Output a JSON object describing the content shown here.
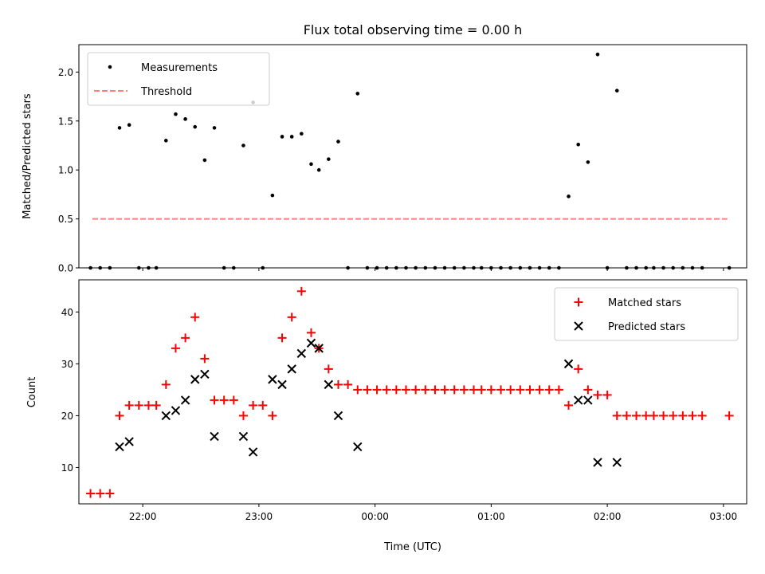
{
  "chart_data": [
    {
      "type": "scatter",
      "title": "Flux total observing time = 0.00 h",
      "xlabel": "",
      "ylabel": "Matched/Predicted stars",
      "ylim": [
        0,
        2.28
      ],
      "yticks": [
        "0.0",
        "0.5",
        "1.0",
        "1.5",
        "2.0"
      ],
      "legend": {
        "position": "top-left",
        "entries": [
          "Measurements",
          "Threshold"
        ]
      },
      "series": [
        {
          "name": "Measurements",
          "marker": "dot",
          "color": "#000000",
          "points": [
            [
              "21:33",
              0.0
            ],
            [
              "21:38",
              0.0
            ],
            [
              "21:43",
              0.0
            ],
            [
              "21:48",
              1.43
            ],
            [
              "21:53",
              1.46
            ],
            [
              "21:58",
              0.0
            ],
            [
              "22:03",
              0.0
            ],
            [
              "22:07",
              0.0
            ],
            [
              "22:12",
              1.3
            ],
            [
              "22:17",
              1.57
            ],
            [
              "22:22",
              1.52
            ],
            [
              "22:27",
              1.44
            ],
            [
              "22:32",
              1.1
            ],
            [
              "22:37",
              1.43
            ],
            [
              "22:42",
              0.0
            ],
            [
              "22:47",
              0.0
            ],
            [
              "22:52",
              1.25
            ],
            [
              "22:57",
              1.69
            ],
            [
              "23:02",
              0.0
            ],
            [
              "23:07",
              0.74
            ],
            [
              "23:12",
              1.34
            ],
            [
              "23:17",
              1.34
            ],
            [
              "23:22",
              1.37
            ],
            [
              "23:27",
              1.06
            ],
            [
              "23:31",
              1.0
            ],
            [
              "23:36",
              1.11
            ],
            [
              "23:41",
              1.29
            ],
            [
              "23:46",
              0.0
            ],
            [
              "23:51",
              1.78
            ],
            [
              "23:56",
              0.0
            ],
            [
              "00:01",
              0.0
            ],
            [
              "00:06",
              0.0
            ],
            [
              "00:11",
              0.0
            ],
            [
              "00:16",
              0.0
            ],
            [
              "00:21",
              0.0
            ],
            [
              "00:26",
              0.0
            ],
            [
              "00:31",
              0.0
            ],
            [
              "00:36",
              0.0
            ],
            [
              "00:41",
              0.0
            ],
            [
              "00:46",
              0.0
            ],
            [
              "00:51",
              0.0
            ],
            [
              "00:55",
              0.0
            ],
            [
              "01:00",
              0.0
            ],
            [
              "01:05",
              0.0
            ],
            [
              "01:10",
              0.0
            ],
            [
              "01:15",
              0.0
            ],
            [
              "01:20",
              0.0
            ],
            [
              "01:25",
              0.0
            ],
            [
              "01:30",
              0.0
            ],
            [
              "01:35",
              0.0
            ],
            [
              "01:40",
              0.73
            ],
            [
              "01:45",
              1.26
            ],
            [
              "01:50",
              1.08
            ],
            [
              "01:55",
              2.18
            ],
            [
              "02:00",
              0.0
            ],
            [
              "02:05",
              1.81
            ],
            [
              "02:10",
              0.0
            ],
            [
              "02:15",
              0.0
            ],
            [
              "02:20",
              0.0
            ],
            [
              "02:24",
              0.0
            ],
            [
              "02:29",
              0.0
            ],
            [
              "02:34",
              0.0
            ],
            [
              "02:39",
              0.0
            ],
            [
              "02:44",
              0.0
            ],
            [
              "02:49",
              0.0
            ],
            [
              "03:03",
              0.0
            ]
          ]
        },
        {
          "name": "Threshold",
          "type": "line",
          "style": "dashed",
          "color": "#ff7f7f",
          "points": [
            [
              "21:34",
              0.5
            ],
            [
              "03:02",
              0.5
            ]
          ]
        }
      ]
    },
    {
      "type": "scatter",
      "title": "",
      "xlabel": "Time (UTC)",
      "ylabel": "Count",
      "ylim": [
        3.0,
        46.2
      ],
      "yticks": [
        "10",
        "20",
        "30",
        "40"
      ],
      "xticks": [
        "22:00",
        "23:00",
        "00:00",
        "01:00",
        "02:00",
        "03:00"
      ],
      "x_axis": {
        "start": "21:27",
        "end": "03:12",
        "crosses_midnight": true
      },
      "legend": {
        "position": "top-right",
        "entries": [
          "Matched stars",
          "Predicted stars"
        ]
      },
      "series": [
        {
          "name": "Matched stars",
          "marker": "plus",
          "color": "#ff0000",
          "points": [
            [
              "21:33",
              5
            ],
            [
              "21:38",
              5
            ],
            [
              "21:43",
              5
            ],
            [
              "21:48",
              20
            ],
            [
              "21:53",
              22
            ],
            [
              "21:58",
              22
            ],
            [
              "22:03",
              22
            ],
            [
              "22:07",
              22
            ],
            [
              "22:12",
              26
            ],
            [
              "22:17",
              33
            ],
            [
              "22:22",
              35
            ],
            [
              "22:27",
              39
            ],
            [
              "22:32",
              31
            ],
            [
              "22:37",
              23
            ],
            [
              "22:42",
              23
            ],
            [
              "22:47",
              23
            ],
            [
              "22:52",
              20
            ],
            [
              "22:57",
              22
            ],
            [
              "23:02",
              22
            ],
            [
              "23:07",
              20
            ],
            [
              "23:12",
              35
            ],
            [
              "23:17",
              39
            ],
            [
              "23:22",
              44
            ],
            [
              "23:27",
              36
            ],
            [
              "23:31",
              33
            ],
            [
              "23:36",
              29
            ],
            [
              "23:41",
              26
            ],
            [
              "23:46",
              26
            ],
            [
              "23:51",
              25
            ],
            [
              "23:56",
              25
            ],
            [
              "00:01",
              25
            ],
            [
              "00:06",
              25
            ],
            [
              "00:11",
              25
            ],
            [
              "00:16",
              25
            ],
            [
              "00:21",
              25
            ],
            [
              "00:26",
              25
            ],
            [
              "00:31",
              25
            ],
            [
              "00:36",
              25
            ],
            [
              "00:41",
              25
            ],
            [
              "00:46",
              25
            ],
            [
              "00:51",
              25
            ],
            [
              "00:55",
              25
            ],
            [
              "01:00",
              25
            ],
            [
              "01:05",
              25
            ],
            [
              "01:10",
              25
            ],
            [
              "01:15",
              25
            ],
            [
              "01:20",
              25
            ],
            [
              "01:25",
              25
            ],
            [
              "01:30",
              25
            ],
            [
              "01:35",
              25
            ],
            [
              "01:40",
              22
            ],
            [
              "01:45",
              29
            ],
            [
              "01:50",
              25
            ],
            [
              "01:55",
              24
            ],
            [
              "02:00",
              24
            ],
            [
              "02:05",
              20
            ],
            [
              "02:10",
              20
            ],
            [
              "02:15",
              20
            ],
            [
              "02:20",
              20
            ],
            [
              "02:24",
              20
            ],
            [
              "02:29",
              20
            ],
            [
              "02:34",
              20
            ],
            [
              "02:39",
              20
            ],
            [
              "02:44",
              20
            ],
            [
              "02:49",
              20
            ],
            [
              "03:03",
              20
            ]
          ]
        },
        {
          "name": "Predicted stars",
          "marker": "cross",
          "color": "#000000",
          "points": [
            [
              "21:48",
              14
            ],
            [
              "21:53",
              15
            ],
            [
              "22:12",
              20
            ],
            [
              "22:17",
              21
            ],
            [
              "22:22",
              23
            ],
            [
              "22:27",
              27
            ],
            [
              "22:32",
              28
            ],
            [
              "22:37",
              16
            ],
            [
              "22:52",
              16
            ],
            [
              "22:57",
              13
            ],
            [
              "23:07",
              27
            ],
            [
              "23:12",
              26
            ],
            [
              "23:17",
              29
            ],
            [
              "23:22",
              32
            ],
            [
              "23:27",
              34
            ],
            [
              "23:31",
              33
            ],
            [
              "23:36",
              26
            ],
            [
              "23:41",
              20
            ],
            [
              "23:51",
              14
            ],
            [
              "01:40",
              30
            ],
            [
              "01:45",
              23
            ],
            [
              "01:50",
              23
            ],
            [
              "01:55",
              11
            ],
            [
              "02:05",
              11
            ]
          ]
        }
      ]
    }
  ]
}
